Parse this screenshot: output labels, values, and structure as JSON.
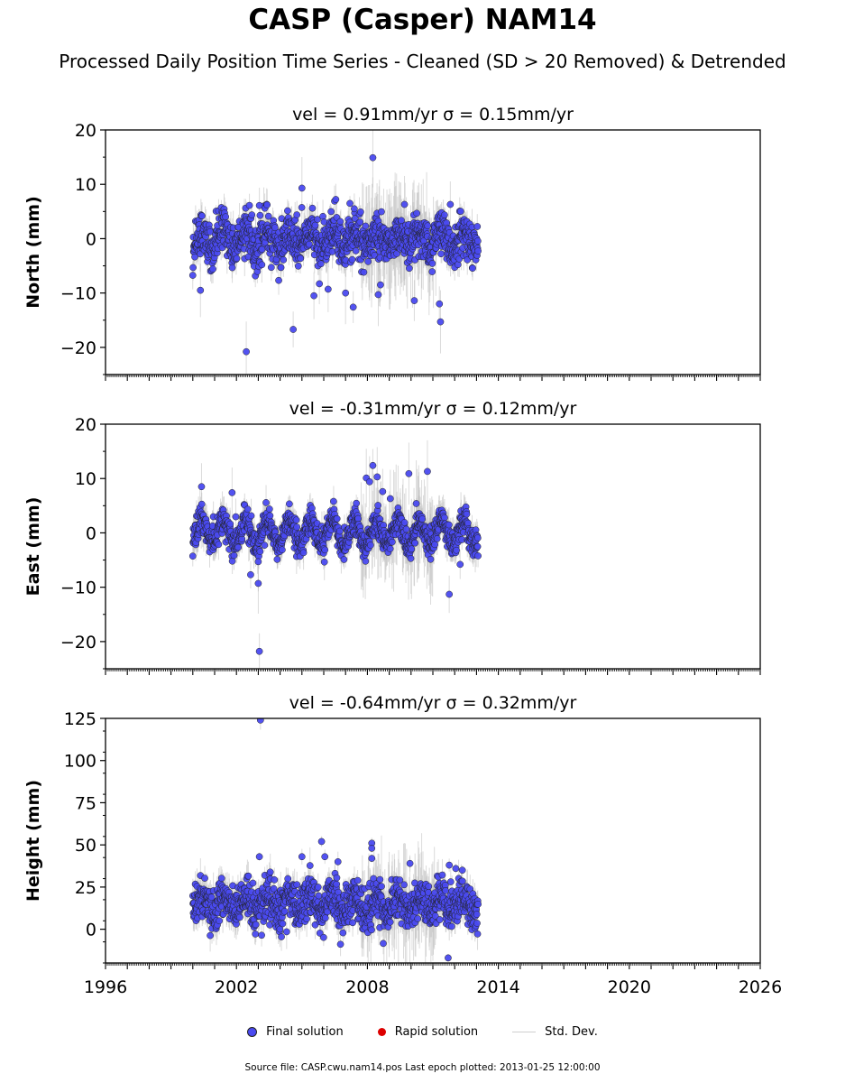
{
  "title": "CASP (Casper) NAM14",
  "subtitle": "Processed Daily Position Time Series - Cleaned (SD > 20 Removed) & Detrended",
  "footer": "Source file: CASP.cwu.nam14.pos  Last epoch plotted: 2013-01-25 12:00:00",
  "legend": {
    "final": "Final solution",
    "rapid": "Rapid solution",
    "std": "Std. Dev."
  },
  "colors": {
    "final": "#4a4af0",
    "rapid": "#dd0000",
    "std": "#bdbdbd"
  },
  "chart_data": [
    {
      "type": "scatter",
      "panel": "north",
      "title": "vel = 0.91mm/yr   σ = 0.15mm/yr",
      "ylabel": "North (mm)",
      "xlim": [
        1996,
        2026
      ],
      "ylim": [
        -25,
        20
      ],
      "yticks": [
        -20,
        -10,
        0,
        10,
        20
      ],
      "x_range": [
        2000.0,
        2013.07
      ],
      "baseline": 0,
      "noise_sd": 2.0,
      "seasonal_amp": 1.5,
      "outliers": [
        [
          2002.45,
          -20.8
        ],
        [
          2005.0,
          9.3
        ],
        [
          2004.6,
          -16.7
        ],
        [
          2008.25,
          14.9
        ],
        [
          2003.05,
          6.1
        ],
        [
          2000.35,
          -9.5
        ],
        [
          2005.55,
          -10.5
        ],
        [
          2007.35,
          -12.6
        ],
        [
          2009.7,
          6.3
        ],
        [
          2011.35,
          -15.3
        ],
        [
          2011.3,
          -12.0
        ],
        [
          2010.15,
          -11.4
        ],
        [
          2011.8,
          6.3
        ],
        [
          2007.4,
          5.5
        ],
        [
          2006.2,
          -9.3
        ],
        [
          2005.8,
          -8.3
        ],
        [
          2007.0,
          -10.0
        ],
        [
          2008.5,
          -10.3
        ],
        [
          2008.6,
          -8.5
        ]
      ]
    },
    {
      "type": "scatter",
      "panel": "east",
      "title": "vel = -0.31mm/yr   σ = 0.12mm/yr",
      "ylabel": "East (mm)",
      "xlim": [
        1996,
        2026
      ],
      "ylim": [
        -25,
        20
      ],
      "yticks": [
        -20,
        -10,
        0,
        10,
        20
      ],
      "x_range": [
        2000.0,
        2013.07
      ],
      "baseline": 0,
      "noise_sd": 1.3,
      "seasonal_amp": 2.2,
      "outliers": [
        [
          2003.05,
          -21.8
        ],
        [
          2000.4,
          8.5
        ],
        [
          2001.8,
          7.4
        ],
        [
          2003.0,
          -9.3
        ],
        [
          2003.0,
          -5.3
        ],
        [
          2002.65,
          -7.7
        ],
        [
          2008.25,
          12.4
        ],
        [
          2008.45,
          10.3
        ],
        [
          2007.95,
          10.1
        ],
        [
          2010.75,
          11.3
        ],
        [
          2009.9,
          10.9
        ],
        [
          2011.75,
          -11.3
        ],
        [
          2008.7,
          7.6
        ],
        [
          2009.05,
          6.3
        ],
        [
          2012.25,
          -5.8
        ],
        [
          2008.1,
          9.4
        ]
      ]
    },
    {
      "type": "scatter",
      "panel": "height",
      "title": "vel = -0.64mm/yr   σ = 0.32mm/yr",
      "ylabel": "Height (mm)",
      "xlim": [
        1996,
        2026
      ],
      "ylim": [
        -20,
        125
      ],
      "yticks": [
        0,
        25,
        50,
        75,
        100,
        125
      ],
      "x_range": [
        2000.0,
        2013.07
      ],
      "baseline": 15,
      "noise_sd": 6.0,
      "seasonal_amp": 5.0,
      "outliers": [
        [
          2003.1,
          124
        ],
        [
          2005.9,
          52
        ],
        [
          2008.2,
          51
        ],
        [
          2008.2,
          48
        ],
        [
          2008.2,
          42
        ],
        [
          2005.0,
          43
        ],
        [
          2003.05,
          43
        ],
        [
          2006.05,
          43
        ],
        [
          2009.95,
          39
        ],
        [
          2006.65,
          40
        ],
        [
          2011.75,
          38
        ],
        [
          2011.7,
          -17
        ],
        [
          2012.35,
          35
        ],
        [
          2012.05,
          36
        ]
      ]
    }
  ],
  "xaxis": {
    "ticks": [
      1996,
      2002,
      2008,
      2014,
      2020,
      2026
    ]
  }
}
